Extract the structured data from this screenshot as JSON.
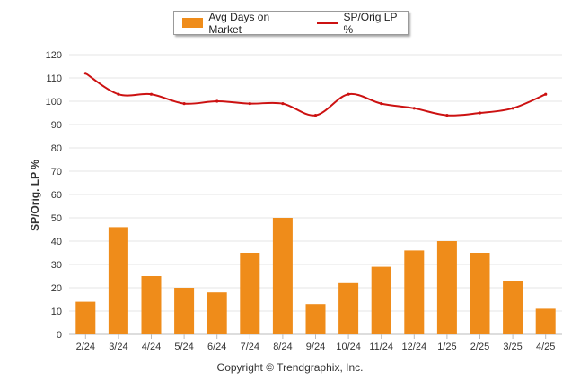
{
  "legend": {
    "bar_label": "Avg Days on Market",
    "line_label": "SP/Orig LP %"
  },
  "copyright": "Copyright © Trendgraphix, Inc.",
  "chart_data": {
    "type": "bar",
    "categories": [
      "2/24",
      "3/24",
      "4/24",
      "5/24",
      "6/24",
      "7/24",
      "8/24",
      "9/24",
      "10/24",
      "11/24",
      "12/24",
      "1/25",
      "2/25",
      "3/25",
      "4/25"
    ],
    "series": [
      {
        "name": "Avg Days on Market",
        "type": "bar",
        "color": "#ef8c1a",
        "values": [
          14,
          46,
          25,
          20,
          18,
          35,
          50,
          13,
          22,
          29,
          36,
          40,
          35,
          23,
          11
        ]
      },
      {
        "name": "SP/Orig LP %",
        "type": "line",
        "color": "#cc1111",
        "values": [
          112,
          103,
          103,
          99,
          100,
          99,
          99,
          94,
          103,
          99,
          97,
          94,
          95,
          97,
          103
        ]
      }
    ],
    "ylabel": "SP/Orig. LP %",
    "xlabel": "",
    "ylim": [
      0,
      120
    ],
    "yticks": [
      0,
      10,
      20,
      30,
      40,
      50,
      60,
      70,
      80,
      90,
      100,
      110,
      120
    ],
    "grid": true,
    "legend_position": "top-center"
  }
}
